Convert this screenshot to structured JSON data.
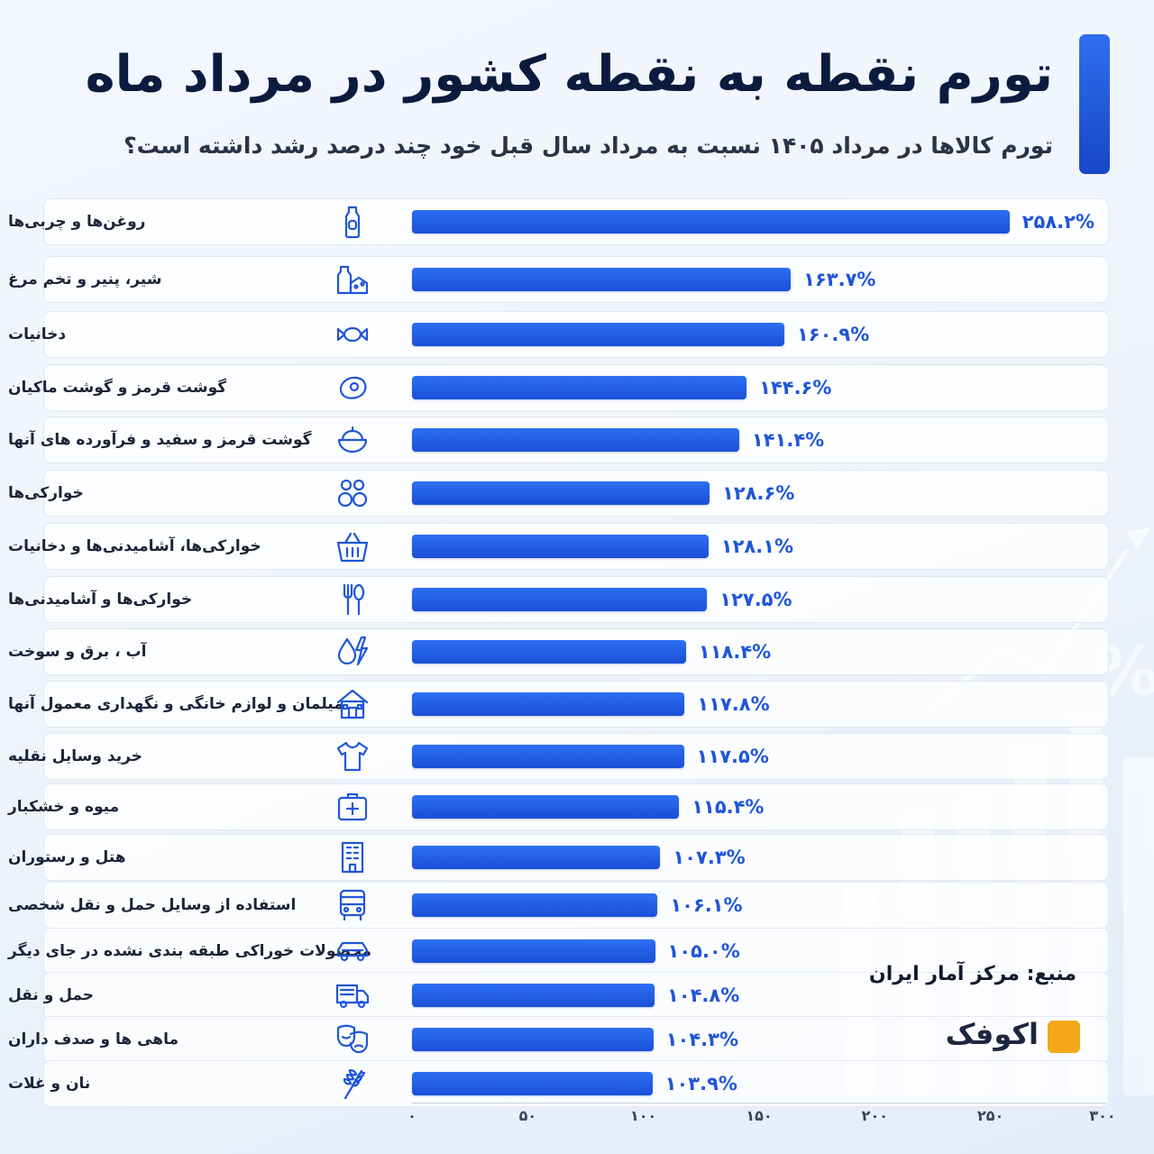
{
  "header": {
    "title": "تورم نقطه به نقطه کشور در مرداد ماه",
    "subtitle": "تورم کالاها در مرداد ۱۴۰۵ نسبت به مرداد سال قبل خود چند درصد رشد داشته است؟"
  },
  "source": "منبع: مرکز آمار ایران",
  "logo": {
    "text": "اکوفک"
  },
  "colors": {
    "bar": "#2463e8",
    "value_text": "#1f56d8",
    "title": "#0b1b3e",
    "accent": "#1f5ce0",
    "logo_mark": "#f3a81b"
  },
  "chart_data": {
    "type": "bar",
    "orientation": "horizontal",
    "title": "تورم نقطه به نقطه کشور در مرداد ماه",
    "subtitle": "تورم کالاها در مرداد ۱۴۰۵ نسبت به مرداد سال قبل خود چند درصد رشد داشته است؟",
    "xlim": [
      0,
      300
    ],
    "grid": false,
    "x_ticks": [
      0,
      50,
      100,
      150,
      200,
      250,
      300
    ],
    "x_tick_labels": [
      "۰",
      "۵۰",
      "۱۰۰",
      "۱۵۰",
      "۲۰۰",
      "۲۵۰",
      "۳۰۰"
    ],
    "unit": "%",
    "categories": [
      "روغن‌ها و چربی‌ها",
      "شیر، پنیر و تخم مرغ",
      "دخانیات",
      "گوشت قرمز و گوشت ماکیان",
      "گوشت قرمز و سفید و فرآورده های آنها",
      "خوارکی‌ها",
      "خوارکی‌ها، آشامیدنی‌ها و دخانیات",
      "خوارکی‌ها و آشامیدنی‌ها",
      "آب ، برق و سوخت",
      "میلمان و لوازم خانگی و نگهداری معمول آنها",
      "خرید وسایل نقلیه",
      "میوه و خشکبار",
      "هتل و رستوران",
      "استفاده از وسایل حمل و نقل شخصی",
      "محصولات خوراکی طبقه بندی نشده در جای دیگر",
      "حمل و نقل",
      "ماهی ها و صدف داران",
      "نان و غلات"
    ],
    "values": [
      258.2,
      163.7,
      160.9,
      144.6,
      141.4,
      128.6,
      128.1,
      127.5,
      118.4,
      117.8,
      117.5,
      115.4,
      107.3,
      106.1,
      105.0,
      104.8,
      104.3,
      103.9
    ],
    "value_labels": [
      "۲۵۸.۲%",
      "۱۶۳.۷%",
      "۱۶۰.۹%",
      "۱۴۴.۶%",
      "۱۴۱.۴%",
      "۱۲۸.۶%",
      "۱۲۸.۱%",
      "۱۲۷.۵%",
      "۱۱۸.۴%",
      "۱۱۷.۸%",
      "۱۱۷.۵%",
      "۱۱۵.۴%",
      "۱۰۷.۳%",
      "۱۰۶.۱%",
      "۱۰۵.۰%",
      "۱۰۴.۸%",
      "۱۰۴.۳%",
      "۱۰۳.۹%"
    ],
    "icons": [
      "bottle-icon",
      "dairy-icon",
      "candy-icon",
      "steak-icon",
      "food-bowl-icon",
      "snacks-icon",
      "basket-icon",
      "cutlery-icon",
      "water-power-icon",
      "house-icon",
      "tshirt-icon",
      "medical-kit-icon",
      "building-icon",
      "bus-icon",
      "car-icon",
      "truck-icon",
      "theater-masks-icon",
      "wheat-icon"
    ]
  }
}
